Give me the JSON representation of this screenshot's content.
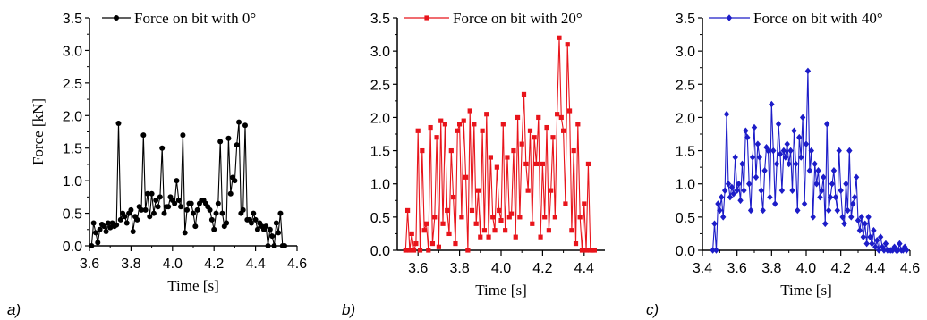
{
  "chart_data": [
    {
      "type": "line",
      "panel_label": "a)",
      "xlabel": "Time [s]",
      "ylabel": "Force [kN]",
      "xlim": [
        3.6,
        4.6
      ],
      "ylim": [
        0.0,
        3.5
      ],
      "xticks": [
        "3.6",
        "3.8",
        "4.0",
        "4.2",
        "4.4",
        "4.6"
      ],
      "yticks": [
        "0.0",
        "0.5",
        "1.0",
        "1.5",
        "2.0",
        "2.5",
        "3.0",
        "3.5"
      ],
      "legend": "top-right",
      "color": "#000000",
      "marker": "circle",
      "series": [
        {
          "name": "Force on bit with 0°",
          "x": [
            3.61,
            3.62,
            3.63,
            3.64,
            3.65,
            3.66,
            3.67,
            3.68,
            3.69,
            3.7,
            3.71,
            3.72,
            3.73,
            3.74,
            3.75,
            3.76,
            3.77,
            3.78,
            3.79,
            3.8,
            3.81,
            3.82,
            3.83,
            3.84,
            3.85,
            3.86,
            3.87,
            3.88,
            3.89,
            3.9,
            3.91,
            3.92,
            3.93,
            3.94,
            3.95,
            3.96,
            3.97,
            3.98,
            3.99,
            4.0,
            4.01,
            4.02,
            4.03,
            4.04,
            4.05,
            4.06,
            4.07,
            4.08,
            4.09,
            4.1,
            4.11,
            4.12,
            4.13,
            4.14,
            4.15,
            4.16,
            4.17,
            4.18,
            4.19,
            4.2,
            4.21,
            4.22,
            4.23,
            4.24,
            4.25,
            4.26,
            4.27,
            4.28,
            4.29,
            4.3,
            4.31,
            4.32,
            4.33,
            4.34,
            4.35,
            4.36,
            4.37,
            4.38,
            4.39,
            4.4,
            4.41,
            4.42,
            4.43,
            4.44,
            4.45,
            4.46,
            4.47,
            4.48,
            4.49,
            4.5,
            4.51,
            4.52,
            4.53,
            4.54
          ],
          "y": [
            0.0,
            0.35,
            0.2,
            0.05,
            0.25,
            0.33,
            0.3,
            0.22,
            0.35,
            0.28,
            0.35,
            0.3,
            0.32,
            1.88,
            0.4,
            0.5,
            0.45,
            0.35,
            0.5,
            0.55,
            0.22,
            0.45,
            0.4,
            0.6,
            0.55,
            1.7,
            0.55,
            0.8,
            0.45,
            0.8,
            0.5,
            0.7,
            0.6,
            0.75,
            1.5,
            0.5,
            0.6,
            0.6,
            0.75,
            0.7,
            0.65,
            1.0,
            0.7,
            0.6,
            1.7,
            0.2,
            0.55,
            0.65,
            0.65,
            0.5,
            0.3,
            0.55,
            0.65,
            0.7,
            0.7,
            0.65,
            0.6,
            0.55,
            0.4,
            0.25,
            0.5,
            0.65,
            1.6,
            0.5,
            0.3,
            0.35,
            1.65,
            0.8,
            1.05,
            1.0,
            1.55,
            1.9,
            0.5,
            0.55,
            1.85,
            0.4,
            0.4,
            0.35,
            0.5,
            0.4,
            0.25,
            0.35,
            0.3,
            0.25,
            0.3,
            0.0,
            0.25,
            0.15,
            0.0,
            0.35,
            0.2,
            0.5,
            0.0,
            0.0
          ]
        }
      ]
    },
    {
      "type": "line",
      "panel_label": "b)",
      "xlabel": "Time [s]",
      "ylabel": "",
      "xlim": [
        3.5,
        4.5
      ],
      "ylim": [
        0.0,
        3.5
      ],
      "xticks": [
        "3.6",
        "3.8",
        "4.0",
        "4.2",
        "4.4"
      ],
      "yticks": [
        "0.0",
        "0.5",
        "1.0",
        "1.5",
        "2.0",
        "2.5",
        "3.0",
        "3.5"
      ],
      "legend": "top-right",
      "color": "#e8141b",
      "marker": "square",
      "series": [
        {
          "name": "Force on bit with 20°",
          "x": [
            3.54,
            3.55,
            3.56,
            3.57,
            3.58,
            3.59,
            3.6,
            3.61,
            3.62,
            3.63,
            3.64,
            3.65,
            3.66,
            3.67,
            3.68,
            3.69,
            3.7,
            3.71,
            3.72,
            3.73,
            3.74,
            3.75,
            3.76,
            3.77,
            3.78,
            3.79,
            3.8,
            3.81,
            3.82,
            3.83,
            3.84,
            3.85,
            3.86,
            3.87,
            3.88,
            3.89,
            3.9,
            3.91,
            3.92,
            3.93,
            3.94,
            3.95,
            3.96,
            3.97,
            3.98,
            3.99,
            4.0,
            4.01,
            4.02,
            4.03,
            4.04,
            4.05,
            4.06,
            4.07,
            4.08,
            4.09,
            4.1,
            4.11,
            4.12,
            4.13,
            4.14,
            4.15,
            4.16,
            4.17,
            4.18,
            4.19,
            4.2,
            4.21,
            4.22,
            4.23,
            4.24,
            4.25,
            4.26,
            4.27,
            4.28,
            4.29,
            4.3,
            4.31,
            4.32,
            4.33,
            4.34,
            4.35,
            4.36,
            4.37,
            4.38,
            4.39,
            4.4,
            4.41,
            4.42,
            4.43,
            4.44,
            4.45
          ],
          "y": [
            0.0,
            0.6,
            0.0,
            0.25,
            0.0,
            0.1,
            1.8,
            0.0,
            1.5,
            0.3,
            0.4,
            0.0,
            1.85,
            0.1,
            0.5,
            1.7,
            0.05,
            1.95,
            0.4,
            1.9,
            0.6,
            0.25,
            1.5,
            0.8,
            0.1,
            1.8,
            1.9,
            0.5,
            1.95,
            1.1,
            0.0,
            2.1,
            0.6,
            1.9,
            0.4,
            0.9,
            0.2,
            1.8,
            0.3,
            2.05,
            0.2,
            1.4,
            0.5,
            0.3,
            1.25,
            0.6,
            0.45,
            1.9,
            0.3,
            1.4,
            0.5,
            0.55,
            1.5,
            0.2,
            2.0,
            0.5,
            1.6,
            2.35,
            1.3,
            0.9,
            1.8,
            0.4,
            1.7,
            1.3,
            2.0,
            0.2,
            1.3,
            0.5,
            1.85,
            0.3,
            0.9,
            1.7,
            0.5,
            2.05,
            3.2,
            2.0,
            1.8,
            0.7,
            3.1,
            2.1,
            0.3,
            1.5,
            0.1,
            1.9,
            0.5,
            0.0,
            0.7,
            0.0,
            1.3,
            0.0,
            0.0,
            0.0
          ]
        }
      ]
    },
    {
      "type": "line",
      "panel_label": "c)",
      "xlabel": "Time [s]",
      "ylabel": "",
      "xlim": [
        3.4,
        4.6
      ],
      "ylim": [
        0.0,
        3.5
      ],
      "xticks": [
        "3.4",
        "3.6",
        "3.8",
        "4.0",
        "4.2",
        "4.4",
        "4.6"
      ],
      "yticks": [
        "0.0",
        "0.5",
        "1.0",
        "1.5",
        "2.0",
        "2.5",
        "3.0",
        "3.5"
      ],
      "legend": "top-right",
      "color": "#1c1cc8",
      "marker": "diamond",
      "series": [
        {
          "name": "Force on bit with 40°",
          "x": [
            3.46,
            3.47,
            3.48,
            3.49,
            3.5,
            3.51,
            3.52,
            3.53,
            3.54,
            3.55,
            3.56,
            3.57,
            3.58,
            3.59,
            3.6,
            3.61,
            3.62,
            3.63,
            3.64,
            3.65,
            3.66,
            3.67,
            3.68,
            3.69,
            3.7,
            3.71,
            3.72,
            3.73,
            3.74,
            3.75,
            3.76,
            3.77,
            3.78,
            3.79,
            3.8,
            3.81,
            3.82,
            3.83,
            3.84,
            3.85,
            3.86,
            3.87,
            3.88,
            3.89,
            3.9,
            3.91,
            3.92,
            3.93,
            3.94,
            3.95,
            3.96,
            3.97,
            3.98,
            3.99,
            4.0,
            4.01,
            4.02,
            4.03,
            4.04,
            4.05,
            4.06,
            4.07,
            4.08,
            4.09,
            4.1,
            4.11,
            4.12,
            4.13,
            4.14,
            4.15,
            4.16,
            4.17,
            4.18,
            4.19,
            4.2,
            4.21,
            4.22,
            4.23,
            4.24,
            4.25,
            4.26,
            4.27,
            4.28,
            4.29,
            4.3,
            4.31,
            4.32,
            4.33,
            4.34,
            4.35,
            4.36,
            4.37,
            4.38,
            4.39,
            4.4,
            4.41,
            4.42,
            4.43,
            4.44,
            4.45,
            4.46,
            4.47,
            4.48,
            4.49,
            4.5,
            4.51,
            4.52,
            4.53,
            4.54,
            4.55,
            4.56,
            4.57,
            4.58
          ],
          "y": [
            0.0,
            0.4,
            0.0,
            0.7,
            0.6,
            0.8,
            0.5,
            0.9,
            2.05,
            1.0,
            0.8,
            0.95,
            0.85,
            1.4,
            0.9,
            1.0,
            0.75,
            1.3,
            0.9,
            1.8,
            1.7,
            1.0,
            0.6,
            1.4,
            1.85,
            1.1,
            1.6,
            1.4,
            0.9,
            0.6,
            1.2,
            1.55,
            1.5,
            0.8,
            2.2,
            1.5,
            0.7,
            1.3,
            1.9,
            1.45,
            0.9,
            1.5,
            1.4,
            1.6,
            1.3,
            1.5,
            0.9,
            1.8,
            1.3,
            0.6,
            1.7,
            1.4,
            2.0,
            0.7,
            1.6,
            2.7,
            1.2,
            1.5,
            0.5,
            1.3,
            1.0,
            1.2,
            0.8,
            0.9,
            1.1,
            0.4,
            1.9,
            0.6,
            0.8,
            1.0,
            1.2,
            0.8,
            0.6,
            1.5,
            0.9,
            0.5,
            0.4,
            1.0,
            0.6,
            1.5,
            0.5,
            0.7,
            0.8,
            1.1,
            0.45,
            0.3,
            0.5,
            0.2,
            0.4,
            0.1,
            0.5,
            0.2,
            0.1,
            0.3,
            0.05,
            0.15,
            0.0,
            0.2,
            0.05,
            0.0,
            0.1,
            0.0,
            0.0,
            0.0,
            0.0,
            0.05,
            0.0,
            0.0,
            0.1,
            0.0,
            0.0,
            0.05,
            0.0
          ]
        }
      ]
    }
  ]
}
